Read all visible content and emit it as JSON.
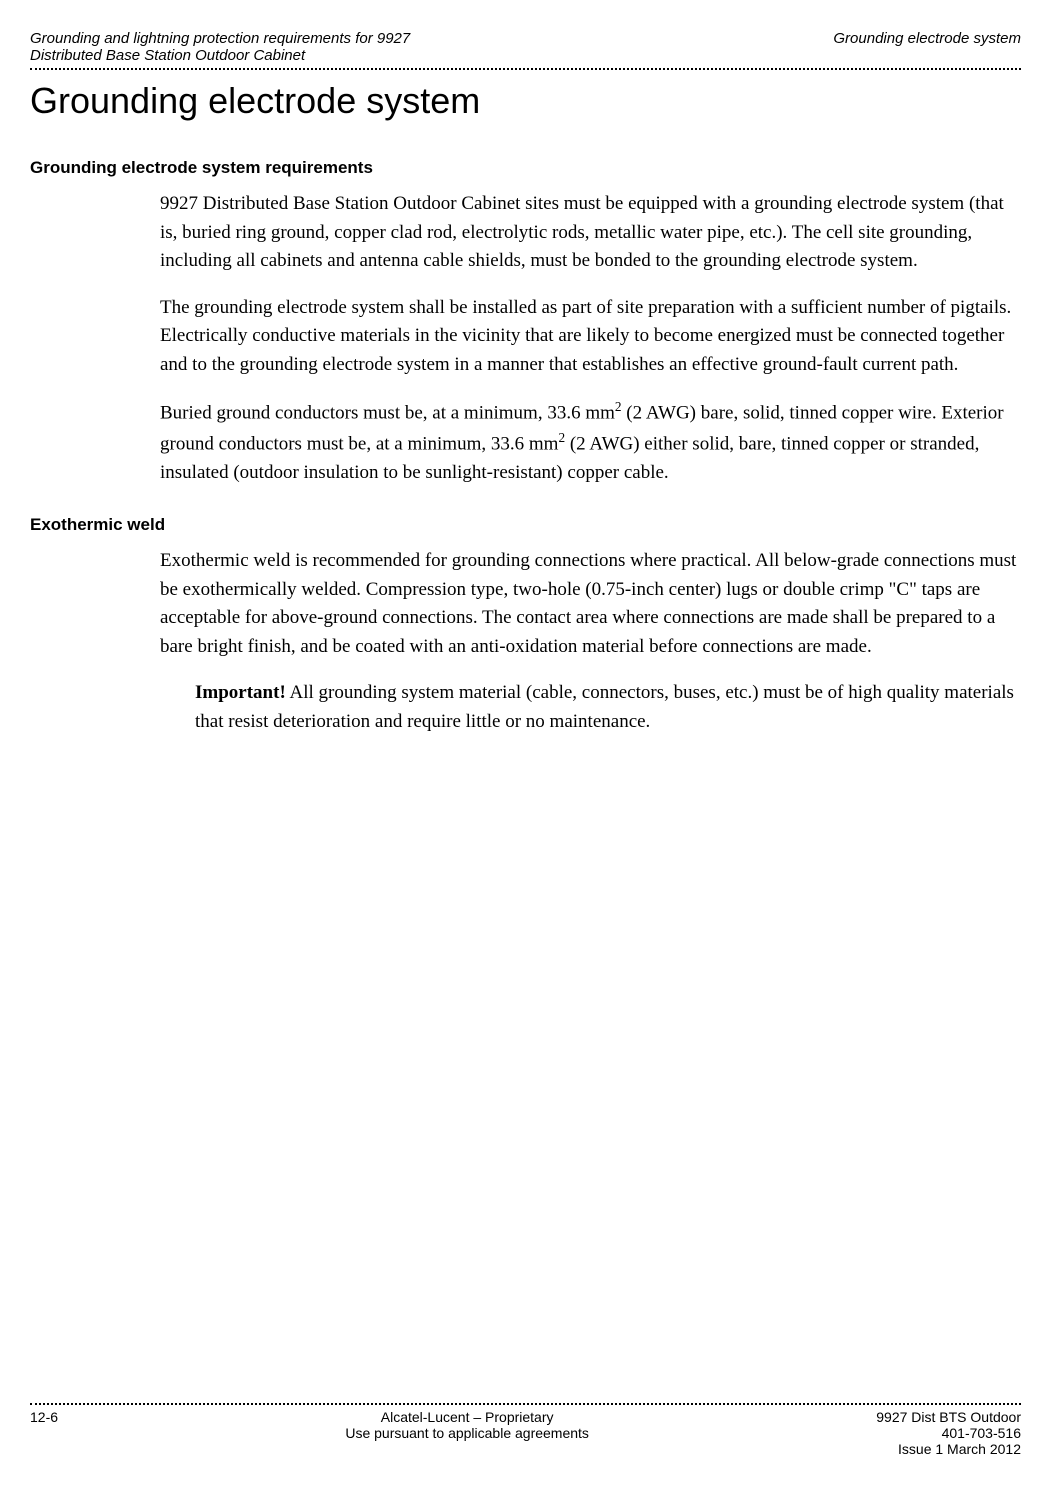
{
  "header": {
    "left_line1": "Grounding and lightning protection requirements for 9927",
    "left_line2": "Distributed Base Station Outdoor Cabinet",
    "right": "Grounding electrode system"
  },
  "main_title": "Grounding electrode system",
  "sections": [
    {
      "heading": "Grounding electrode system requirements",
      "paragraphs": [
        "9927 Distributed Base Station Outdoor Cabinet sites must be equipped with a grounding electrode system (that is, buried ring ground, copper clad rod, electrolytic rods, metallic water pipe, etc.). The cell site grounding, including all cabinets and antenna cable shields, must be bonded to the grounding electrode system.",
        "The grounding electrode system shall be installed as part of site preparation with a sufficient number of pigtails. Electrically conductive materials in the vicinity that are likely to become energized must be connected together and to the grounding electrode system in a manner that establishes an effective ground-fault current path.",
        "Buried ground conductors must be, at a minimum, 33.6 mm² (2 AWG) bare, solid, tinned copper wire. Exterior ground conductors must be, at a minimum, 33.6 mm² (2 AWG) either solid, bare, tinned copper or stranded, insulated (outdoor insulation to be sunlight-resistant) copper cable."
      ]
    },
    {
      "heading": "Exothermic weld",
      "paragraphs": [
        "Exothermic weld is recommended for grounding connections where practical. All below-grade connections must be exothermically welded. Compression type, two-hole (0.75-inch center) lugs or double crimp \"C\" taps are acceptable for above-ground connections. The contact area where connections are made shall be prepared to a bare bright finish, and be coated with an anti-oxidation material before connections are made."
      ],
      "important": {
        "label": "Important!",
        "text": " All grounding system material (cable, connectors, buses, etc.) must be of high quality materials that resist deterioration and require little or no maintenance."
      }
    }
  ],
  "footer": {
    "page_number": "12-6",
    "center_line1": "Alcatel-Lucent – Proprietary",
    "center_line2": "Use pursuant to applicable agreements",
    "right_line1": "9927 Dist BTS Outdoor",
    "right_line2": "401-703-516",
    "right_line3": "Issue 1   March 2012"
  }
}
